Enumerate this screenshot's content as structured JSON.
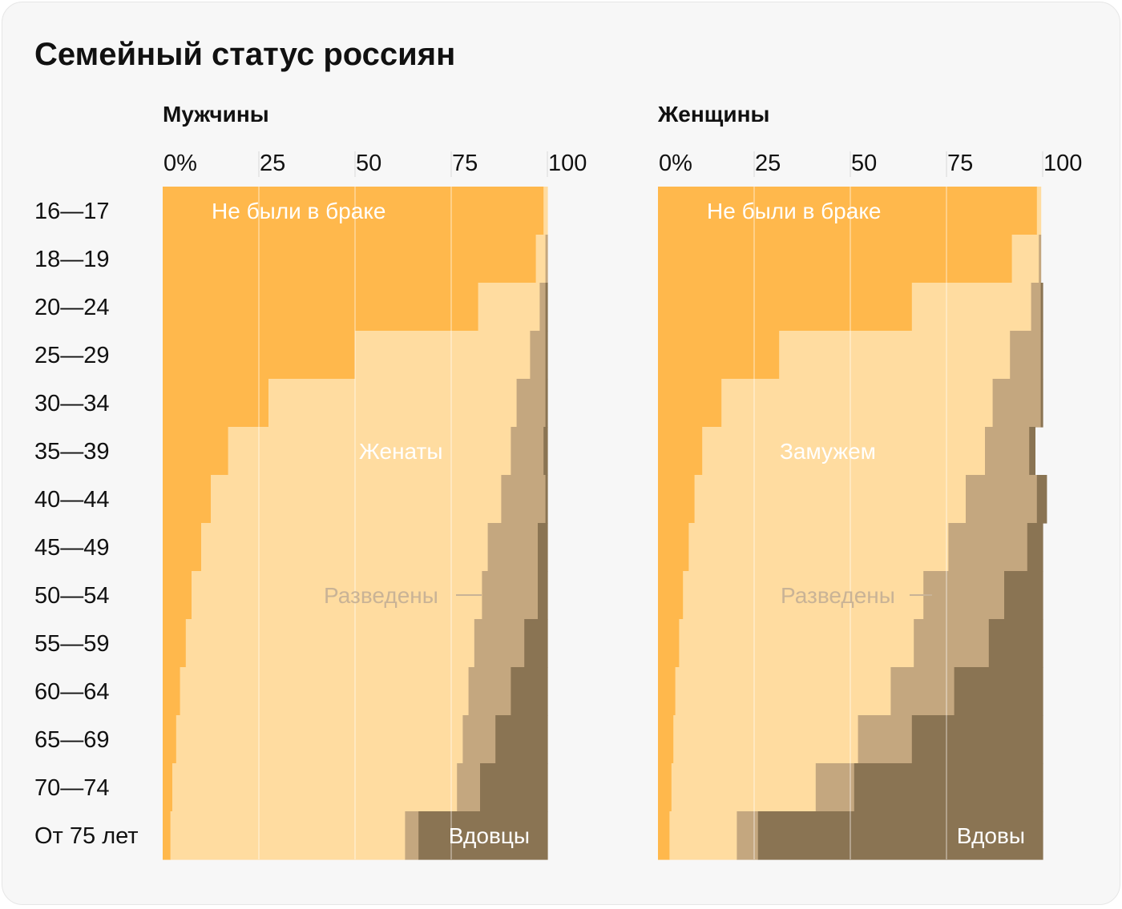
{
  "title": "Семейный статус россиян",
  "colors": {
    "never_married": "#FFB84C",
    "married": "#FFDCA0",
    "divorced": "#C4A77F",
    "widowed": "#8A7453",
    "gridline": "#FFFFFF",
    "annotation_light": "#FFFFFF",
    "annotation_divorced": "#C9B396"
  },
  "chart_data": [
    {
      "type": "bar",
      "stacked": true,
      "orientation": "horizontal",
      "title": "Мужчины",
      "xlim": [
        0,
        100
      ],
      "x_tick_labels": [
        "0%",
        "25",
        "50",
        "75",
        "100"
      ],
      "categories": [
        "16—17",
        "18—19",
        "20—24",
        "25—29",
        "30—34",
        "35—39",
        "40—44",
        "45—49",
        "50—54",
        "55—59",
        "60—64",
        "65—69",
        "70—74",
        "От 75 лет"
      ],
      "series": [
        {
          "name": "Не были в браке",
          "values": [
            99.0,
            97.0,
            82.0,
            50.0,
            27.5,
            17.0,
            12.5,
            10.0,
            7.5,
            6.0,
            4.5,
            3.5,
            2.5,
            2.0
          ]
        },
        {
          "name": "Женаты",
          "values": [
            1.0,
            2.5,
            16.0,
            45.5,
            64.5,
            73.5,
            75.5,
            74.5,
            75.5,
            75.0,
            75.0,
            74.5,
            74.0,
            61.0
          ]
        },
        {
          "name": "Разведены",
          "values": [
            0,
            0.5,
            1.5,
            4.0,
            7.5,
            8.5,
            11.5,
            13.0,
            14.5,
            13.0,
            11.0,
            8.5,
            6.0,
            3.5
          ]
        },
        {
          "name": "Вдовцы",
          "values": [
            0,
            0,
            0.5,
            0.5,
            0.5,
            1.0,
            0.5,
            2.5,
            2.5,
            6.0,
            9.5,
            13.5,
            17.5,
            33.5
          ]
        }
      ],
      "annotations": {
        "never_married": "Не были в браке",
        "married": "Женаты",
        "divorced": "Разведены",
        "widowed": "Вдовцы"
      }
    },
    {
      "type": "bar",
      "stacked": true,
      "orientation": "horizontal",
      "title": "Женщины",
      "xlim": [
        0,
        100
      ],
      "x_tick_labels": [
        "0%",
        "25",
        "50",
        "75",
        "100"
      ],
      "categories": [
        "16—17",
        "18—19",
        "20—24",
        "25—29",
        "30—34",
        "35—39",
        "40—44",
        "45—49",
        "50—54",
        "55—59",
        "60—64",
        "65—69",
        "70—74",
        "От 75 лет"
      ],
      "series": [
        {
          "name": "Не были в браке",
          "values": [
            98.5,
            92.0,
            66.0,
            31.5,
            16.5,
            11.5,
            9.5,
            8.0,
            6.5,
            5.5,
            4.5,
            4.0,
            3.5,
            3.0
          ]
        },
        {
          "name": "Замужем",
          "values": [
            1.0,
            7.0,
            31.0,
            60.0,
            70.5,
            73.5,
            70.5,
            67.5,
            62.5,
            61.0,
            56.0,
            48.0,
            37.5,
            17.5
          ]
        },
        {
          "name": "Разведены",
          "values": [
            0,
            0.5,
            2.5,
            8.0,
            12.5,
            11.5,
            18.5,
            20.5,
            21.0,
            19.5,
            16.5,
            14.0,
            10.0,
            5.5
          ]
        },
        {
          "name": "Вдовы",
          "values": [
            0,
            0,
            0.5,
            0.5,
            0.5,
            1.5,
            2.5,
            4.0,
            10.0,
            14.0,
            23.0,
            34.0,
            49.0,
            74.0
          ]
        }
      ],
      "annotations": {
        "never_married": "Не были в браке",
        "married": "Замужем",
        "divorced": "Разведены",
        "widowed": "Вдовы"
      }
    }
  ]
}
